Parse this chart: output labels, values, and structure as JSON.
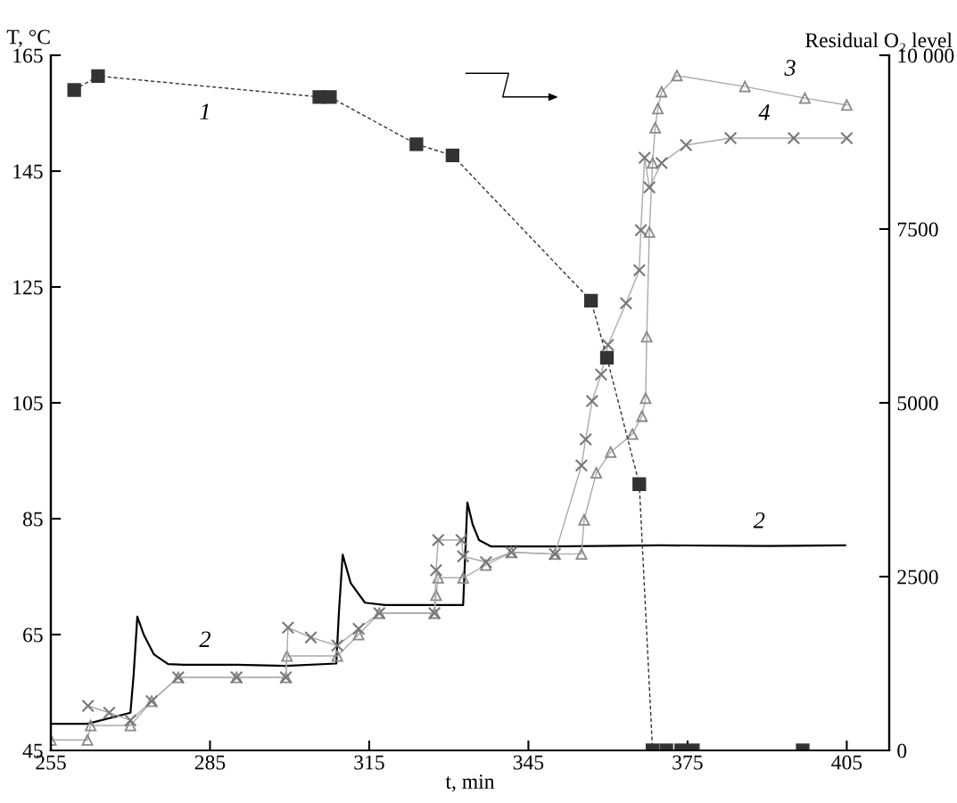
{
  "chart_data": {
    "type": "line",
    "xlabel": "t, min",
    "ylabel": "T, °C",
    "y2label": "Residual O₂ level",
    "xlim": [
      255,
      413
    ],
    "xticks": [
      255,
      285,
      315,
      345,
      375,
      405
    ],
    "ylim": [
      45,
      165
    ],
    "yticks": [
      45,
      65,
      85,
      105,
      125,
      145,
      165
    ],
    "y2lim": [
      0,
      10000
    ],
    "y2ticks": [
      0,
      2500,
      5000,
      7500,
      {
        "value": 10000,
        "label": "10 000"
      }
    ],
    "grid": false,
    "series": [
      {
        "axis": "y2",
        "color": "#333333",
        "marker": "square",
        "line_style": "dashed",
        "x": [
          259.4,
          263.9,
          305.6,
          307.6,
          323.9,
          330.7,
          356.8,
          359.8,
          365.9,
          368.4,
          371.0,
          373.8,
          376.0,
          396.7
        ],
        "values": [
          9500,
          9700,
          9400,
          9400,
          8720,
          8560,
          6470,
          5650,
          3830,
          0,
          0,
          0,
          0,
          0
        ]
      },
      {
        "color": "#000000",
        "marker": "none",
        "line_style": "solid",
        "x": [
          255,
          261.9,
          270,
          270.6,
          271.3,
          272.5,
          274.4,
          277.1,
          280,
          290,
          299.3,
          308.8,
          309.3,
          310,
          311.5,
          314.2,
          318,
          325,
          332.7,
          333.5,
          334.5,
          335.7,
          338,
          350,
          370,
          390,
          404.7
        ],
        "values": [
          49.6,
          49.6,
          51.5,
          58,
          68.1,
          65,
          61.6,
          59.9,
          59.8,
          59.8,
          59.6,
          60,
          69,
          78.8,
          73.9,
          70.5,
          70.1,
          70.1,
          70.1,
          87.8,
          84,
          81.3,
          80.2,
          80.2,
          80.4,
          80.3,
          80.4
        ]
      },
      {
        "color": "#888888",
        "marker": "triangle",
        "line_style": "solid",
        "x": [
          255,
          261.9,
          262.5,
          270,
          274,
          279,
          290,
          299.3,
          299.5,
          309,
          313,
          316.9,
          327.3,
          327.6,
          328,
          332.7,
          337,
          341.8,
          350,
          355,
          355.5,
          357.8,
          360.5,
          364.6,
          366.4,
          367.1,
          367.3,
          367.8,
          368.4,
          368.9,
          369.4,
          370.1,
          373,
          385.8,
          397.1,
          405
        ],
        "values": [
          46.8,
          46.8,
          49.3,
          49.3,
          53.5,
          57.6,
          57.6,
          57.6,
          61.3,
          61.3,
          65,
          68.7,
          68.7,
          71.8,
          74.8,
          74.8,
          77,
          79.2,
          78.9,
          78.9,
          84.8,
          92.9,
          96.5,
          99.6,
          102.7,
          105.8,
          116.4,
          134.5,
          146.4,
          152.5,
          155.8,
          158.7,
          161.5,
          159.6,
          157.6,
          156.4
        ]
      },
      {
        "color": "#777777",
        "marker": "cross",
        "line_style": "solid",
        "x": [
          262,
          266,
          270,
          274,
          279,
          290,
          299.3,
          299.7,
          304,
          309,
          313,
          316.9,
          327.3,
          327.6,
          328,
          332.4,
          332.7,
          337,
          341.8,
          350,
          355,
          355.8,
          357,
          358.7,
          360,
          363.4,
          365.9,
          366.2,
          366.9,
          367.8,
          370.1,
          374.7,
          383.1,
          395,
          405
        ],
        "values": [
          52.7,
          51.5,
          50.2,
          53.5,
          57.6,
          57.6,
          57.6,
          66.2,
          64.5,
          63.1,
          66,
          68.7,
          68.7,
          76.1,
          81.3,
          81.3,
          78.5,
          77.5,
          79.2,
          78.9,
          94.2,
          98.7,
          105.3,
          109.9,
          115,
          122.2,
          127.9,
          134.8,
          147.3,
          142.2,
          146.4,
          149.5,
          150.7,
          150.7,
          150.7
        ]
      }
    ],
    "annotations": [
      "1",
      "2",
      "2",
      "3",
      "4"
    ]
  }
}
